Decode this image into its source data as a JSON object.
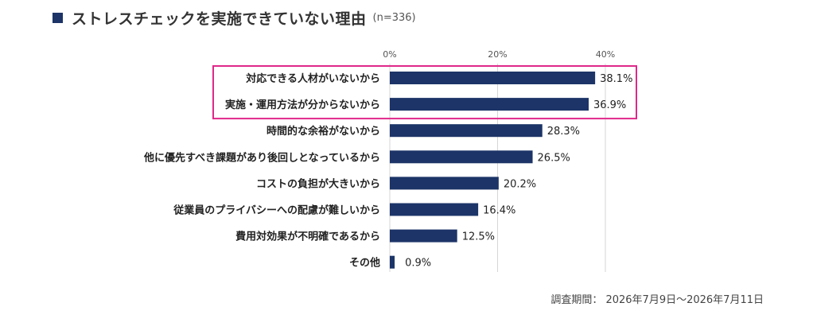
{
  "title": {
    "text": "ストレスチェックを実施できていない理由",
    "n_label": "(n=336)"
  },
  "footnote": "調査期間： 2026年7月9日～2026年7月11日",
  "colors": {
    "bar": "#1c3467",
    "highlight_border": "#e0288a",
    "grid": "#d6d6d6",
    "title_square": "#1c3467"
  },
  "chart_data": {
    "type": "bar",
    "orientation": "horizontal",
    "categories": [
      "対応できる人材がいないから",
      "実施・運用方法が分からないから",
      "時間的な余裕がないから",
      "他に優先すべき課題があり後回しとなっているから",
      "コストの負担が大きいから",
      "従業員のプライバシーへの配慮が難しいから",
      "費用対効果が不明確であるから",
      "その他"
    ],
    "values": [
      38.1,
      36.9,
      28.3,
      26.5,
      20.2,
      16.4,
      12.5,
      0.9
    ],
    "value_labels": [
      "38.1%",
      "36.9%",
      "28.3%",
      "26.5%",
      "20.2%",
      "16.4%",
      "12.5%",
      "0.9%"
    ],
    "xlim": [
      0,
      40
    ],
    "ticks": [
      0,
      20,
      40
    ],
    "tick_labels": [
      "0%",
      "20%",
      "40%"
    ],
    "grid": true,
    "highlighted_categories": [
      0,
      1
    ]
  }
}
